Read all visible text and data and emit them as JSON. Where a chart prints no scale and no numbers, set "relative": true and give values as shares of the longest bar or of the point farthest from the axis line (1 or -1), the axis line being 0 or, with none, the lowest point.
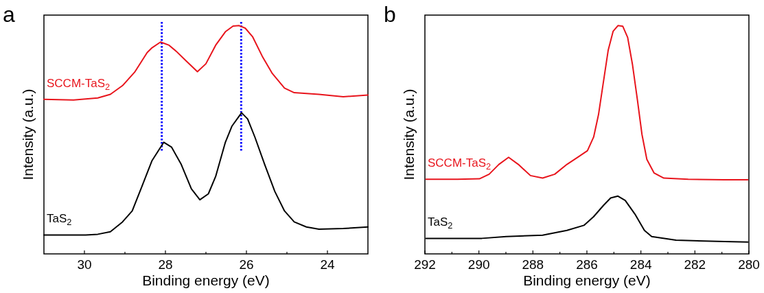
{
  "chart_data": [
    {
      "type": "line",
      "title": "a",
      "xlabel": "Binding energy (eV)",
      "ylabel": "Intensity (a.u.)",
      "relative": true,
      "tick_labels": "x",
      "xlim": [
        31,
        23
      ],
      "xticks": [
        30,
        {
          "value": 29,
          "label": null
        },
        28,
        {
          "value": 27,
          "label": null
        },
        26,
        {
          "value": 25,
          "label": null
        },
        24
      ],
      "ref_lines": [
        {
          "axis": "x",
          "value": 28.09,
          "color": "#0000ff",
          "line_style": "dotted"
        },
        {
          "axis": "x",
          "value": 26.13,
          "color": "#0000ff",
          "line_style": "dotted"
        }
      ],
      "series": [
        {
          "name": "SCCM-TaS$_{2}$",
          "color": "#e8141c",
          "x": [
            31.0,
            30.27,
            29.67,
            29.36,
            29.06,
            28.76,
            28.45,
            28.33,
            28.12,
            27.91,
            27.73,
            27.48,
            27.21,
            27.0,
            26.76,
            26.52,
            26.33,
            26.18,
            26.03,
            25.85,
            25.61,
            25.36,
            25.06,
            24.82,
            24.21,
            23.61,
            23.0
          ],
          "values": [
            0.677,
            0.674,
            0.683,
            0.699,
            0.737,
            0.796,
            0.882,
            0.903,
            0.928,
            0.914,
            0.887,
            0.844,
            0.798,
            0.833,
            0.914,
            0.973,
            0.998,
            1.0,
            0.989,
            0.952,
            0.866,
            0.79,
            0.726,
            0.706,
            0.699,
            0.688,
            0.696
          ]
        },
        {
          "name": "TaS$_{2}$",
          "color": "#000000",
          "x": [
            31.0,
            29.97,
            29.67,
            29.36,
            29.06,
            28.82,
            28.58,
            28.33,
            28.04,
            27.85,
            27.61,
            27.36,
            27.15,
            26.94,
            26.76,
            26.52,
            26.36,
            26.12,
            25.97,
            25.79,
            25.55,
            25.3,
            25.06,
            24.82,
            24.52,
            24.21,
            23.61,
            23.0
          ],
          "values": [
            0.083,
            0.083,
            0.086,
            0.097,
            0.14,
            0.188,
            0.296,
            0.409,
            0.489,
            0.468,
            0.392,
            0.285,
            0.237,
            0.263,
            0.339,
            0.489,
            0.559,
            0.618,
            0.591,
            0.511,
            0.392,
            0.274,
            0.188,
            0.14,
            0.118,
            0.108,
            0.111,
            0.118
          ]
        }
      ]
    },
    {
      "type": "line",
      "title": "b",
      "xlabel": "Binding energy (eV)",
      "ylabel": "Intensity (a.u.)",
      "relative": true,
      "tick_labels": "x",
      "xlim": [
        292,
        280
      ],
      "xticks": [
        292,
        {
          "value": 291,
          "label": null
        },
        290,
        {
          "value": 289,
          "label": null
        },
        288,
        {
          "value": 287,
          "label": null
        },
        286,
        {
          "value": 285,
          "label": null
        },
        284,
        {
          "value": 283,
          "label": null
        },
        282,
        {
          "value": 281,
          "label": null
        },
        280
      ],
      "series": [
        {
          "name": "SCCM-TaS$_{2}$",
          "color": "#e8141c",
          "x": [
            291.96,
            290.79,
            289.98,
            289.62,
            289.26,
            288.9,
            288.54,
            288.09,
            287.64,
            287.19,
            286.74,
            286.29,
            285.98,
            285.75,
            285.57,
            285.39,
            285.21,
            285.03,
            284.85,
            284.67,
            284.49,
            284.31,
            284.13,
            283.96,
            283.78,
            283.51,
            283.15,
            282.25,
            280.9,
            280.04
          ],
          "values": [
            0.327,
            0.327,
            0.329,
            0.349,
            0.392,
            0.423,
            0.392,
            0.343,
            0.332,
            0.349,
            0.392,
            0.427,
            0.452,
            0.512,
            0.61,
            0.752,
            0.893,
            0.975,
            1.0,
            0.997,
            0.948,
            0.828,
            0.675,
            0.523,
            0.414,
            0.354,
            0.332,
            0.327,
            0.325,
            0.325
          ]
        },
        {
          "name": "TaS$_{2}$",
          "color": "#000000",
          "x": [
            291.96,
            289.89,
            288.99,
            287.64,
            286.74,
            286.11,
            285.75,
            285.39,
            285.12,
            284.85,
            284.58,
            284.22,
            283.87,
            283.6,
            282.7,
            280.9,
            280.04
          ],
          "values": [
            0.068,
            0.068,
            0.076,
            0.082,
            0.103,
            0.125,
            0.163,
            0.212,
            0.245,
            0.253,
            0.234,
            0.174,
            0.103,
            0.076,
            0.06,
            0.054,
            0.052
          ]
        }
      ]
    }
  ]
}
